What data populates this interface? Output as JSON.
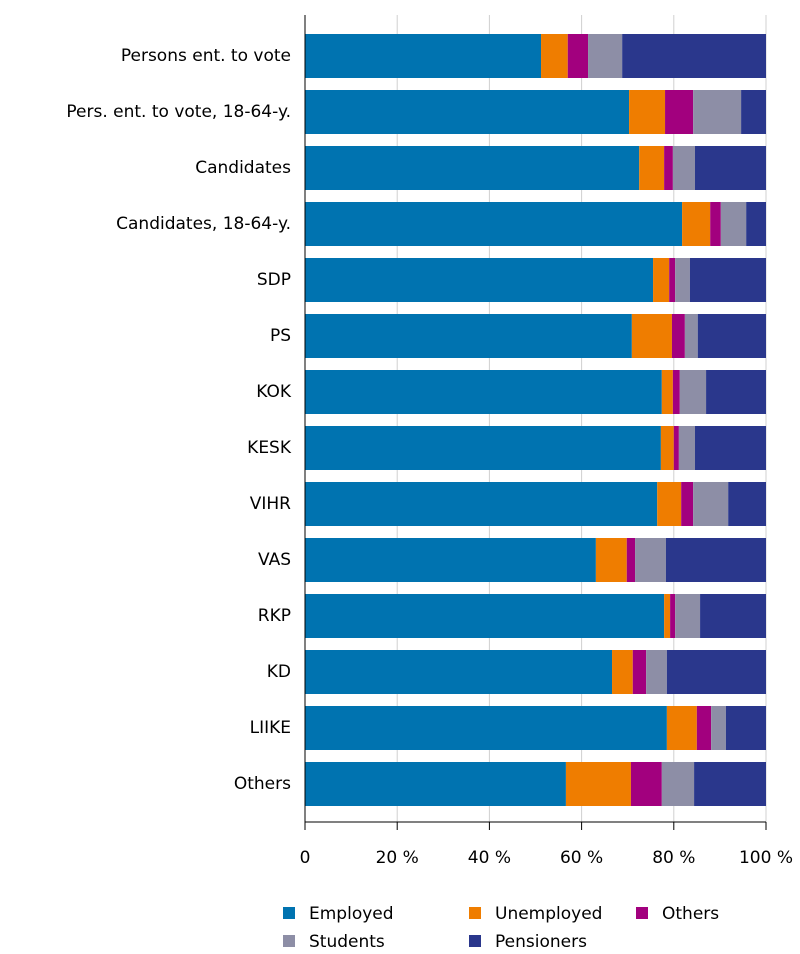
{
  "chart_data": {
    "type": "stacked-bar",
    "categories": [
      "Persons ent. to vote",
      "Pers. ent. to vote, 18-64-y.",
      "Candidates",
      "Candidates, 18-64-y.",
      "SDP",
      "PS",
      "KOK",
      "KESK",
      "VIHR",
      "VAS",
      "RKP",
      "KD",
      "LIIKE",
      "Others"
    ],
    "series": [
      {
        "name": "Employed",
        "color": "#0073b0",
        "values": [
          51.2,
          70.3,
          72.5,
          81.8,
          75.5,
          70.9,
          77.4,
          77.2,
          76.4,
          63.1,
          77.9,
          66.6,
          78.5,
          56.6
        ]
      },
      {
        "name": "Unemployed",
        "color": "#ef7d00",
        "values": [
          5.8,
          7.8,
          5.4,
          6.1,
          3.5,
          8.7,
          2.4,
          2.8,
          5.2,
          6.7,
          1.3,
          4.5,
          6.5,
          14.1
        ]
      },
      {
        "name": "Others",
        "color": "#a2007e",
        "values": [
          4.4,
          6.1,
          1.9,
          2.3,
          1.3,
          2.8,
          1.5,
          1.1,
          2.6,
          1.8,
          1.1,
          2.9,
          3.1,
          6.7
        ]
      },
      {
        "name": "Students",
        "color": "#8d8ea6",
        "values": [
          7.4,
          10.4,
          4.8,
          5.5,
          3.2,
          2.8,
          5.7,
          3.5,
          7.6,
          6.7,
          5.4,
          4.5,
          3.2,
          7.0
        ]
      },
      {
        "name": "Pensioners",
        "color": "#2a378c",
        "values": [
          31.2,
          5.4,
          15.4,
          4.3,
          16.5,
          14.8,
          13.0,
          15.4,
          8.2,
          21.7,
          14.3,
          21.5,
          8.7,
          15.6
        ]
      }
    ],
    "xlim": [
      0,
      100
    ],
    "xticks": [
      0,
      {
        "value": 20,
        "label": "20 %"
      },
      {
        "value": 40,
        "label": "40 %"
      },
      {
        "value": 60,
        "label": "60 %"
      },
      {
        "value": 80,
        "label": "80 %"
      },
      {
        "value": 100,
        "label": "100 %"
      }
    ],
    "grid": true,
    "legend": "bottom"
  }
}
